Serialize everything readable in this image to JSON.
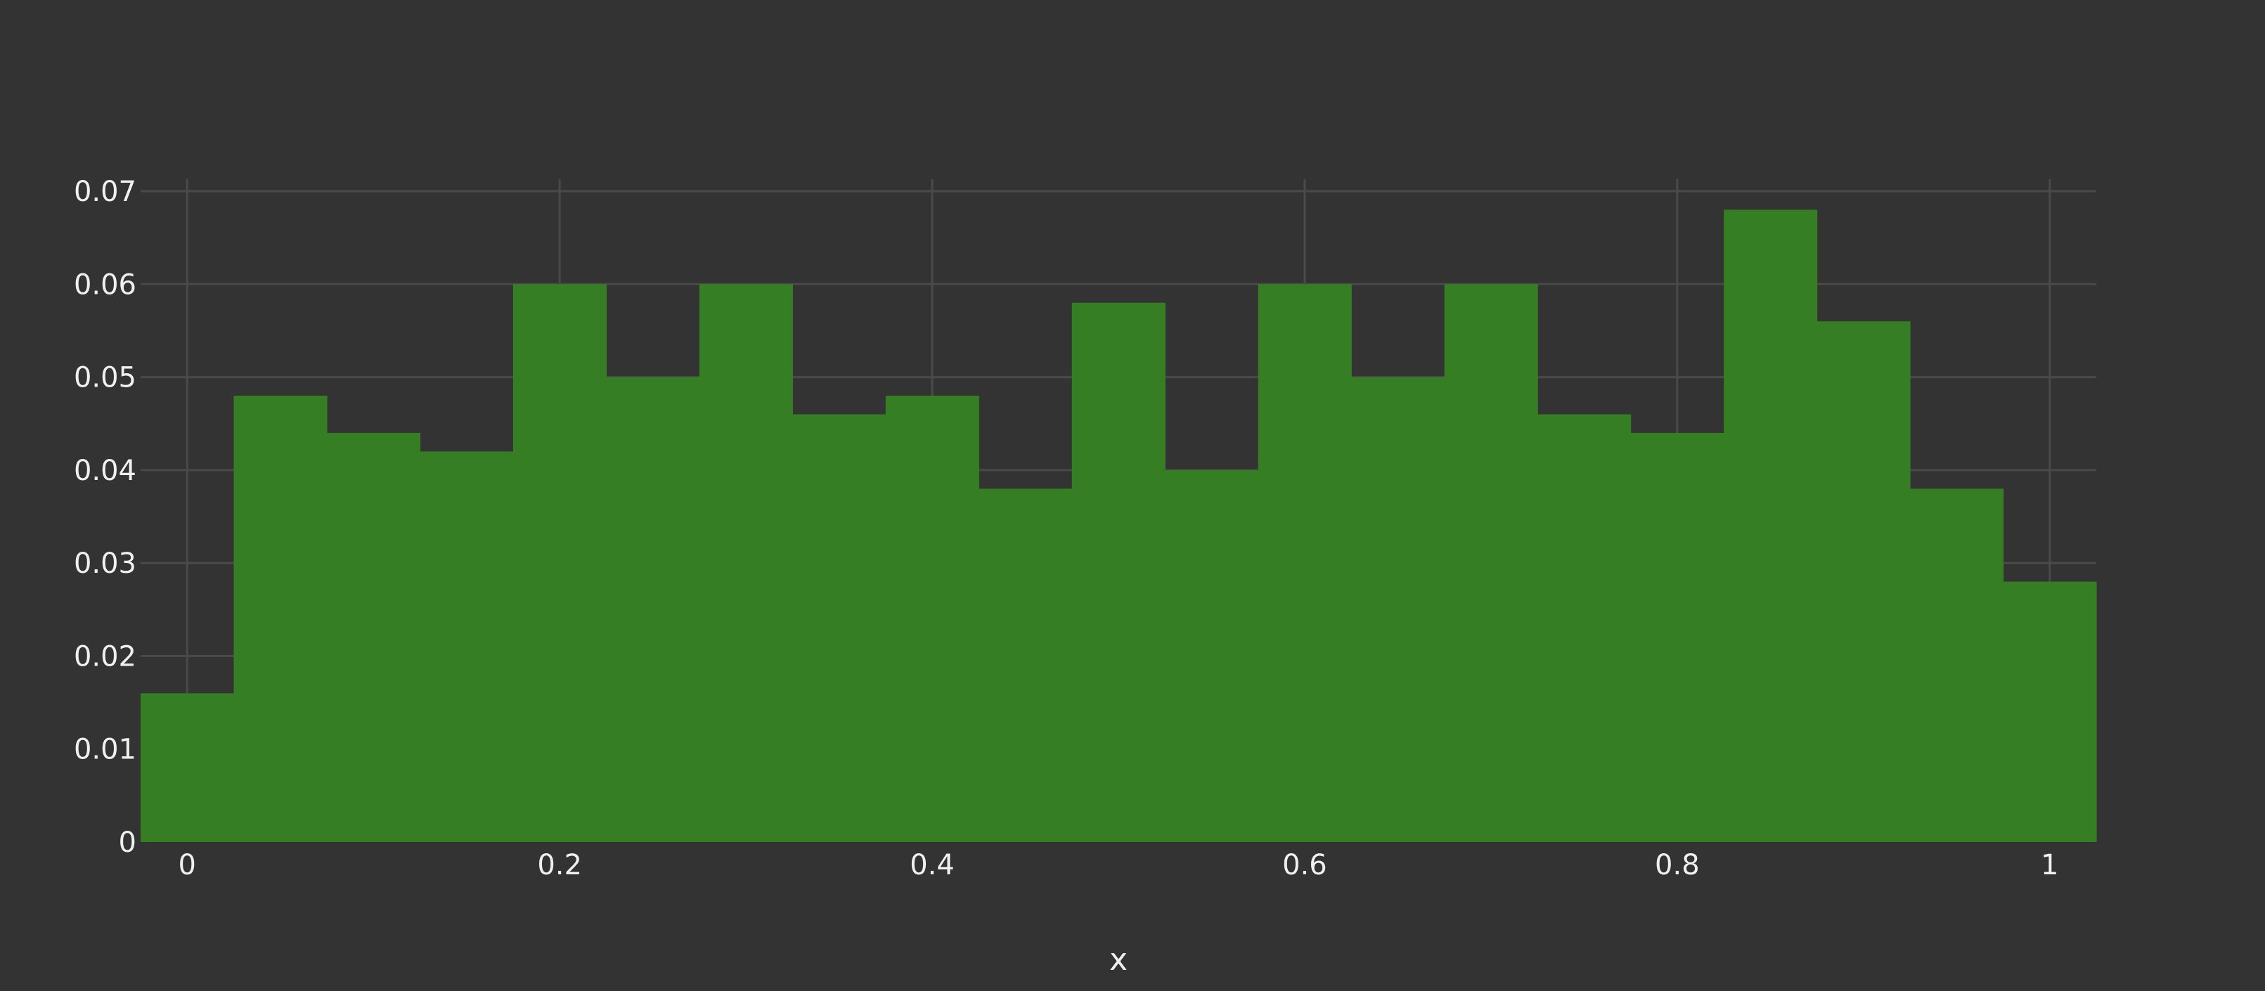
{
  "chart_data": {
    "type": "bar",
    "subtype": "histogram",
    "xlabel": "x",
    "ylabel": "",
    "xlim": [
      -0.025,
      1.025
    ],
    "ylim": [
      0,
      0.07
    ],
    "x_ticks": [
      "0",
      "0.2",
      "0.4",
      "0.6",
      "0.8",
      "1"
    ],
    "x_tick_values": [
      0,
      0.2,
      0.4,
      0.6,
      0.8,
      1
    ],
    "y_ticks": [
      "0",
      "0.01",
      "0.02",
      "0.03",
      "0.04",
      "0.05",
      "0.06",
      "0.07"
    ],
    "y_tick_values": [
      0,
      0.01,
      0.02,
      0.03,
      0.04,
      0.05,
      0.06,
      0.07
    ],
    "grid": true,
    "bin_width": 0.05,
    "bins": [
      {
        "start": -0.025,
        "end": 0.025,
        "value": 0.016
      },
      {
        "start": 0.025,
        "end": 0.075,
        "value": 0.048
      },
      {
        "start": 0.075,
        "end": 0.125,
        "value": 0.044
      },
      {
        "start": 0.125,
        "end": 0.175,
        "value": 0.042
      },
      {
        "start": 0.175,
        "end": 0.225,
        "value": 0.06
      },
      {
        "start": 0.225,
        "end": 0.275,
        "value": 0.05
      },
      {
        "start": 0.275,
        "end": 0.325,
        "value": 0.06
      },
      {
        "start": 0.325,
        "end": 0.375,
        "value": 0.046
      },
      {
        "start": 0.375,
        "end": 0.425,
        "value": 0.048
      },
      {
        "start": 0.425,
        "end": 0.475,
        "value": 0.038
      },
      {
        "start": 0.475,
        "end": 0.525,
        "value": 0.058
      },
      {
        "start": 0.525,
        "end": 0.575,
        "value": 0.04
      },
      {
        "start": 0.575,
        "end": 0.625,
        "value": 0.06
      },
      {
        "start": 0.625,
        "end": 0.675,
        "value": 0.05
      },
      {
        "start": 0.675,
        "end": 0.725,
        "value": 0.06
      },
      {
        "start": 0.725,
        "end": 0.775,
        "value": 0.046
      },
      {
        "start": 0.775,
        "end": 0.825,
        "value": 0.044
      },
      {
        "start": 0.825,
        "end": 0.875,
        "value": 0.068
      },
      {
        "start": 0.875,
        "end": 0.925,
        "value": 0.056
      },
      {
        "start": 0.925,
        "end": 0.975,
        "value": 0.038
      },
      {
        "start": 0.975,
        "end": 1.025,
        "value": 0.028
      }
    ],
    "colors": {
      "background": "#333333",
      "bar": "#367e23",
      "grid": "#4a4a4a",
      "text": "#f0f0f0"
    }
  }
}
